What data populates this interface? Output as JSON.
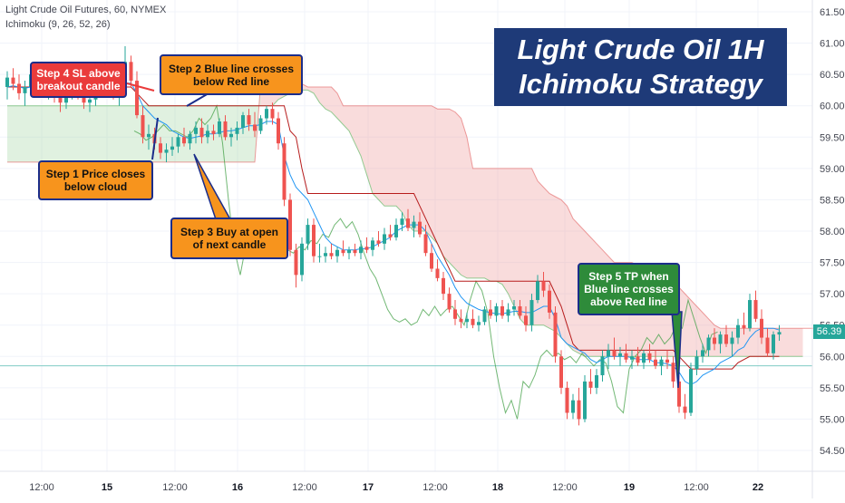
{
  "header": {
    "symbol": "Light Crude Oil Futures, 60, NYMEX",
    "indicator": "Ichimoku (9, 26, 52, 26)"
  },
  "title": {
    "line1": "Light Crude Oil 1H",
    "line2": "Ichimoku Strategy"
  },
  "callouts": {
    "step4": "Step 4 SL above breakout candle",
    "step2": "Step 2 Blue line crosses below Red line",
    "step1": "Step 1 Price closes below cloud",
    "step3": "Step 3 Buy at open of next candle",
    "step5": "Step 5 TP when Blue line crosses above Red line"
  },
  "last_price": "56.39",
  "colors": {
    "bull": "#26a69a",
    "bear": "#ef5350",
    "tenkan": "#2196f3",
    "kijun": "#b71c1c",
    "chikou": "#43a047",
    "cloud_bull": "#a5d6a7",
    "cloud_bear": "#ef9a9a"
  },
  "chart_data": {
    "type": "candlestick",
    "y_ticks": [
      "61.50",
      "61.00",
      "60.50",
      "60.00",
      "59.50",
      "59.00",
      "58.50",
      "58.00",
      "57.50",
      "57.00",
      "56.50",
      "56.00",
      "55.50",
      "55.00",
      "54.50"
    ],
    "ylim": [
      54.1,
      61.7
    ],
    "x_ticks": [
      "12:00",
      "15",
      "12:00",
      "16",
      "12:00",
      "17",
      "12:00",
      "18",
      "12:00",
      "19",
      "12:00",
      "22"
    ],
    "horizontal_line": 55.85,
    "ohlc": [
      [
        60.3,
        60.55,
        60.1,
        60.45
      ],
      [
        60.45,
        60.6,
        60.25,
        60.35
      ],
      [
        60.35,
        60.5,
        60.1,
        60.2
      ],
      [
        60.2,
        60.4,
        60.0,
        60.3
      ],
      [
        60.3,
        60.55,
        60.2,
        60.5
      ],
      [
        60.5,
        60.6,
        60.3,
        60.4
      ],
      [
        60.4,
        60.5,
        60.15,
        60.25
      ],
      [
        60.25,
        60.45,
        60.1,
        60.35
      ],
      [
        60.35,
        60.45,
        60.05,
        60.15
      ],
      [
        60.15,
        60.3,
        59.9,
        60.05
      ],
      [
        60.05,
        60.35,
        59.95,
        60.25
      ],
      [
        60.25,
        60.5,
        60.1,
        60.4
      ],
      [
        60.4,
        60.55,
        60.1,
        60.2
      ],
      [
        60.2,
        60.3,
        59.95,
        60.05
      ],
      [
        60.05,
        60.2,
        59.9,
        60.1
      ],
      [
        60.1,
        60.4,
        60.0,
        60.3
      ],
      [
        60.3,
        60.5,
        60.2,
        60.4
      ],
      [
        60.4,
        60.6,
        60.25,
        60.45
      ],
      [
        60.45,
        60.55,
        60.1,
        60.15
      ],
      [
        60.15,
        60.3,
        60.0,
        60.2
      ],
      [
        60.2,
        60.95,
        60.15,
        60.7
      ],
      [
        60.7,
        60.8,
        60.3,
        60.4
      ],
      [
        60.4,
        60.55,
        59.8,
        59.85
      ],
      [
        59.85,
        60.0,
        59.4,
        59.5
      ],
      [
        59.5,
        59.7,
        59.3,
        59.55
      ],
      [
        59.55,
        59.65,
        59.3,
        59.4
      ],
      [
        59.4,
        59.5,
        59.15,
        59.25
      ],
      [
        59.25,
        59.4,
        59.1,
        59.3
      ],
      [
        59.3,
        59.5,
        59.2,
        59.35
      ],
      [
        59.35,
        59.55,
        59.25,
        59.5
      ],
      [
        59.5,
        59.65,
        59.35,
        59.4
      ],
      [
        59.4,
        59.6,
        59.3,
        59.55
      ],
      [
        59.55,
        59.75,
        59.4,
        59.65
      ],
      [
        59.65,
        59.8,
        59.4,
        59.5
      ],
      [
        59.5,
        59.7,
        59.4,
        59.6
      ],
      [
        59.6,
        59.7,
        59.45,
        59.55
      ],
      [
        59.55,
        59.8,
        59.5,
        59.75
      ],
      [
        59.75,
        59.85,
        59.45,
        59.5
      ],
      [
        59.5,
        59.65,
        59.35,
        59.55
      ],
      [
        59.55,
        59.75,
        59.45,
        59.65
      ],
      [
        59.65,
        59.9,
        59.55,
        59.85
      ],
      [
        59.85,
        59.95,
        59.6,
        59.7
      ],
      [
        59.7,
        59.9,
        59.5,
        59.6
      ],
      [
        59.6,
        59.85,
        59.55,
        59.8
      ],
      [
        59.8,
        60.0,
        59.7,
        59.95
      ],
      [
        59.95,
        60.05,
        59.7,
        59.8
      ],
      [
        59.8,
        59.9,
        59.3,
        59.4
      ],
      [
        59.4,
        59.5,
        58.4,
        58.5
      ],
      [
        58.5,
        58.6,
        57.6,
        57.7
      ],
      [
        57.7,
        57.8,
        57.1,
        57.3
      ],
      [
        57.3,
        57.9,
        57.2,
        57.8
      ],
      [
        57.8,
        58.2,
        57.7,
        58.1
      ],
      [
        58.1,
        58.2,
        57.5,
        57.6
      ],
      [
        57.6,
        57.8,
        57.5,
        57.6
      ],
      [
        57.6,
        57.75,
        57.5,
        57.65
      ],
      [
        57.65,
        57.8,
        57.55,
        57.6
      ],
      [
        57.6,
        57.75,
        57.5,
        57.7
      ],
      [
        57.7,
        57.85,
        57.6,
        57.65
      ],
      [
        57.65,
        57.75,
        57.55,
        57.7
      ],
      [
        57.7,
        57.8,
        57.6,
        57.65
      ],
      [
        57.65,
        57.85,
        57.55,
        57.75
      ],
      [
        57.75,
        57.9,
        57.65,
        57.7
      ],
      [
        57.7,
        57.9,
        57.6,
        57.85
      ],
      [
        57.85,
        58.0,
        57.75,
        57.8
      ],
      [
        57.8,
        58.05,
        57.7,
        57.95
      ],
      [
        57.95,
        58.1,
        57.85,
        57.9
      ],
      [
        57.9,
        58.2,
        57.85,
        58.1
      ],
      [
        58.1,
        58.3,
        58.0,
        58.2
      ],
      [
        58.2,
        58.35,
        58.0,
        58.05
      ],
      [
        58.05,
        58.25,
        57.9,
        58.15
      ],
      [
        58.15,
        58.3,
        57.9,
        57.95
      ],
      [
        57.95,
        58.1,
        57.6,
        57.65
      ],
      [
        57.65,
        57.8,
        57.35,
        57.4
      ],
      [
        57.4,
        57.55,
        57.2,
        57.25
      ],
      [
        57.25,
        57.35,
        56.9,
        57.0
      ],
      [
        57.0,
        57.1,
        56.7,
        56.75
      ],
      [
        56.75,
        56.9,
        56.5,
        56.6
      ],
      [
        56.6,
        56.75,
        56.45,
        56.55
      ],
      [
        56.55,
        56.7,
        56.45,
        56.6
      ],
      [
        56.6,
        56.75,
        56.45,
        56.5
      ],
      [
        56.5,
        56.65,
        56.4,
        56.55
      ],
      [
        56.55,
        56.8,
        56.5,
        56.75
      ],
      [
        56.75,
        56.9,
        56.6,
        56.65
      ],
      [
        56.65,
        56.85,
        56.55,
        56.8
      ],
      [
        56.8,
        56.9,
        56.6,
        56.65
      ],
      [
        56.65,
        56.85,
        56.55,
        56.75
      ],
      [
        56.75,
        56.9,
        56.65,
        56.8
      ],
      [
        56.8,
        56.9,
        56.6,
        56.65
      ],
      [
        56.65,
        56.8,
        56.4,
        56.5
      ],
      [
        56.5,
        57.0,
        56.4,
        56.9
      ],
      [
        56.9,
        57.3,
        56.85,
        57.2
      ],
      [
        57.2,
        57.35,
        56.95,
        57.05
      ],
      [
        57.05,
        57.15,
        56.6,
        56.7
      ],
      [
        56.7,
        56.8,
        55.9,
        56.0
      ],
      [
        56.0,
        56.1,
        55.4,
        55.5
      ],
      [
        55.5,
        55.6,
        55.0,
        55.1
      ],
      [
        55.1,
        55.4,
        55.0,
        55.3
      ],
      [
        55.3,
        55.5,
        54.9,
        55.0
      ],
      [
        55.0,
        55.7,
        54.95,
        55.6
      ],
      [
        55.6,
        55.8,
        55.4,
        55.5
      ],
      [
        55.5,
        55.8,
        55.4,
        55.7
      ],
      [
        55.7,
        56.1,
        55.6,
        56.0
      ],
      [
        56.0,
        56.2,
        55.8,
        56.1
      ],
      [
        56.1,
        56.3,
        55.95,
        56.0
      ],
      [
        56.0,
        56.15,
        55.85,
        56.05
      ],
      [
        56.05,
        56.2,
        55.9,
        55.95
      ],
      [
        55.95,
        56.1,
        55.8,
        56.0
      ],
      [
        56.0,
        56.15,
        55.85,
        55.9
      ],
      [
        55.9,
        56.1,
        55.8,
        56.05
      ],
      [
        56.05,
        56.2,
        55.9,
        55.95
      ],
      [
        55.95,
        56.1,
        55.8,
        55.85
      ],
      [
        55.85,
        56.0,
        55.7,
        55.95
      ],
      [
        55.95,
        56.1,
        55.8,
        55.9
      ],
      [
        55.9,
        56.0,
        55.5,
        55.6
      ],
      [
        55.6,
        55.7,
        55.1,
        55.2
      ],
      [
        55.2,
        55.4,
        55.0,
        55.1
      ],
      [
        55.1,
        55.9,
        55.05,
        55.8
      ],
      [
        55.8,
        56.1,
        55.7,
        56.0
      ],
      [
        56.0,
        56.2,
        55.9,
        56.1
      ],
      [
        56.1,
        56.35,
        56.0,
        56.3
      ],
      [
        56.3,
        56.45,
        56.1,
        56.2
      ],
      [
        56.2,
        56.4,
        56.05,
        56.35
      ],
      [
        56.35,
        56.5,
        56.15,
        56.2
      ],
      [
        56.2,
        56.4,
        56.0,
        56.3
      ],
      [
        56.3,
        56.6,
        56.2,
        56.5
      ],
      [
        56.5,
        56.7,
        56.35,
        56.45
      ],
      [
        56.45,
        57.0,
        56.4,
        56.9
      ],
      [
        56.9,
        57.05,
        56.55,
        56.6
      ],
      [
        56.6,
        56.75,
        56.2,
        56.3
      ],
      [
        56.3,
        56.45,
        56.0,
        56.05
      ],
      [
        56.05,
        56.4,
        55.95,
        56.35
      ],
      [
        56.35,
        56.5,
        56.25,
        56.39
      ]
    ],
    "tenkan": [
      60.3,
      60.32,
      60.3,
      60.28,
      60.3,
      60.32,
      60.3,
      60.28,
      60.26,
      60.24,
      60.25,
      60.27,
      60.26,
      60.25,
      60.24,
      60.25,
      60.28,
      60.3,
      60.3,
      60.3,
      60.36,
      60.36,
      60.2,
      60.0,
      59.9,
      59.8,
      59.75,
      59.7,
      59.6,
      59.55,
      59.5,
      59.48,
      59.5,
      59.52,
      59.55,
      59.55,
      59.57,
      59.6,
      59.6,
      59.62,
      59.65,
      59.68,
      59.68,
      59.7,
      59.75,
      59.75,
      59.7,
      59.2,
      58.9,
      58.7,
      58.6,
      58.5,
      58.3,
      58.1,
      57.9,
      57.8,
      57.75,
      57.7,
      57.7,
      57.7,
      57.72,
      57.72,
      57.75,
      57.8,
      57.85,
      57.9,
      58.0,
      58.05,
      58.1,
      58.1,
      58.1,
      58.0,
      57.8,
      57.6,
      57.45,
      57.3,
      57.1,
      56.95,
      56.85,
      56.8,
      56.75,
      56.72,
      56.7,
      56.68,
      56.68,
      56.7,
      56.72,
      56.72,
      56.7,
      56.7,
      56.75,
      56.8,
      56.8,
      56.6,
      56.3,
      56.2,
      56.15,
      56.1,
      56.05,
      55.95,
      55.9,
      55.95,
      56.0,
      56.0,
      56.0,
      56.0,
      55.98,
      55.95,
      55.95,
      55.95,
      55.9,
      55.9,
      55.88,
      55.85,
      55.75,
      55.6,
      55.55,
      55.6,
      55.7,
      55.75,
      55.8,
      55.9,
      55.95,
      56.0,
      56.1,
      56.15,
      56.3,
      56.4,
      56.45,
      56.45,
      56.45,
      56.42
    ],
    "kijun": [
      60.3,
      60.3,
      60.3,
      60.3,
      60.3,
      60.3,
      60.3,
      60.3,
      60.3,
      60.3,
      60.3,
      60.3,
      60.3,
      60.3,
      60.3,
      60.3,
      60.3,
      60.3,
      60.3,
      60.3,
      60.3,
      60.3,
      60.2,
      60.1,
      60.0,
      60.0,
      60.0,
      60.0,
      60.0,
      60.0,
      60.0,
      60.0,
      60.0,
      60.0,
      60.0,
      60.0,
      60.0,
      60.0,
      60.0,
      60.0,
      60.0,
      60.0,
      60.0,
      60.0,
      60.0,
      60.0,
      60.0,
      60.0,
      59.6,
      59.5,
      59.0,
      58.6,
      58.6,
      58.6,
      58.6,
      58.6,
      58.6,
      58.6,
      58.6,
      58.6,
      58.6,
      58.6,
      58.6,
      58.6,
      58.6,
      58.6,
      58.6,
      58.6,
      58.6,
      58.6,
      58.4,
      58.2,
      58.0,
      57.8,
      57.6,
      57.4,
      57.2,
      57.2,
      57.2,
      57.2,
      57.2,
      57.2,
      57.2,
      57.2,
      57.2,
      57.2,
      57.2,
      57.2,
      57.2,
      57.2,
      57.2,
      57.2,
      57.2,
      57.0,
      56.8,
      56.5,
      56.2,
      56.1,
      56.1,
      56.1,
      56.1,
      56.1,
      56.1,
      56.1,
      56.1,
      56.1,
      56.1,
      56.1,
      56.1,
      56.1,
      56.1,
      56.1,
      56.1,
      56.1,
      56.0,
      55.9,
      55.8,
      55.8,
      55.8,
      55.8,
      55.8,
      55.8,
      55.8,
      55.8,
      55.9,
      55.95,
      56.0,
      56.0,
      56.0,
      56.0,
      56.0,
      56.0
    ],
    "chikou": [
      59.6,
      59.55,
      59.45,
      59.5,
      59.6,
      59.7,
      59.6,
      59.6,
      59.55,
      59.5,
      59.6,
      59.8,
      59.7,
      59.8,
      60.0,
      59.4,
      58.5,
      57.7,
      57.3,
      57.8,
      58.1,
      57.6,
      57.6,
      57.6,
      57.7,
      57.65,
      57.7,
      57.65,
      57.75,
      57.7,
      57.85,
      57.8,
      57.95,
      57.9,
      58.1,
      58.2,
      58.05,
      58.15,
      57.95,
      57.65,
      57.4,
      57.25,
      57.0,
      56.75,
      56.6,
      56.55,
      56.6,
      56.5,
      56.55,
      56.75,
      56.65,
      56.8,
      56.65,
      56.75,
      56.8,
      56.65,
      56.5,
      56.9,
      57.2,
      57.05,
      56.7,
      56.0,
      55.5,
      55.1,
      55.3,
      55.0,
      55.6,
      55.5,
      55.7,
      56.0,
      56.1,
      56.0,
      56.05,
      55.95,
      56.0,
      55.9,
      56.05,
      55.95,
      55.85,
      55.95,
      55.9,
      55.6,
      55.2,
      55.1,
      55.8,
      56.0,
      56.1,
      56.3,
      56.2,
      56.35,
      56.2,
      56.3,
      56.5,
      56.45,
      56.9,
      56.6,
      56.3,
      56.05,
      56.35,
      56.39
    ],
    "span_a": [
      60.0,
      60.0,
      60.0,
      60.0,
      60.0,
      60.0,
      60.0,
      60.0,
      60.0,
      60.0,
      60.0,
      60.0,
      60.0,
      60.0,
      60.0,
      60.0,
      60.0,
      60.0,
      60.0,
      60.0,
      60.0,
      60.0,
      60.0,
      60.0,
      60.0,
      60.0,
      60.0,
      60.0,
      60.0,
      60.0,
      60.0,
      60.0,
      60.0,
      60.0,
      60.0,
      60.0,
      60.0,
      60.0,
      60.0,
      60.0,
      60.0,
      60.0,
      60.0,
      60.0,
      60.0,
      60.0,
      60.1,
      60.15,
      60.2,
      60.2,
      60.25,
      60.25,
      60.2,
      60.05,
      59.95,
      59.9,
      59.8,
      59.7,
      59.6,
      59.4,
      59.2,
      58.9,
      58.6,
      58.5,
      58.4,
      58.4,
      58.4,
      58.3,
      58.1,
      58.0,
      58.0,
      58.0,
      57.9,
      57.8,
      57.6,
      57.5,
      57.4,
      57.3,
      57.25,
      57.25,
      57.25,
      57.25,
      57.2,
      57.2,
      57.15,
      57.0,
      56.8,
      56.6,
      56.5,
      56.5,
      56.5,
      56.5,
      56.45,
      56.4,
      56.3,
      56.2,
      56.1,
      56.05,
      56.0,
      56.0,
      56.0,
      56.0,
      56.0,
      56.0,
      56.0,
      56.0,
      56.0,
      56.0,
      56.0,
      56.0,
      56.0,
      56.0,
      56.0,
      56.0,
      56.0,
      56.0,
      56.0,
      56.0,
      56.0,
      56.0,
      56.0,
      56.0,
      56.0,
      56.0,
      56.0,
      56.0,
      56.0,
      56.0,
      56.0,
      56.0,
      56.0,
      56.0,
      56.0,
      56.0,
      56.0,
      56.0
    ],
    "span_b": [
      59.1,
      59.1,
      59.1,
      59.1,
      59.1,
      59.1,
      59.1,
      59.1,
      59.1,
      59.1,
      59.1,
      59.1,
      59.1,
      59.1,
      59.1,
      59.1,
      59.1,
      59.1,
      59.1,
      59.1,
      59.1,
      59.1,
      59.1,
      59.1,
      59.1,
      59.1,
      59.1,
      59.1,
      59.1,
      59.1,
      59.1,
      59.1,
      59.1,
      59.1,
      59.1,
      59.1,
      59.1,
      59.1,
      59.1,
      59.1,
      59.1,
      59.1,
      59.1,
      60.35,
      60.35,
      60.35,
      60.35,
      60.35,
      60.35,
      60.35,
      60.35,
      60.3,
      60.3,
      60.3,
      60.3,
      60.3,
      60.2,
      60.0,
      60.0,
      60.0,
      60.0,
      60.0,
      60.0,
      60.0,
      60.0,
      60.0,
      60.0,
      60.0,
      60.0,
      60.0,
      60.0,
      60.0,
      60.0,
      59.95,
      59.95,
      59.95,
      59.9,
      59.8,
      59.5,
      59.0,
      59.0,
      59.0,
      59.0,
      59.0,
      59.0,
      59.0,
      59.0,
      59.0,
      59.0,
      59.0,
      58.8,
      58.7,
      58.6,
      58.55,
      58.5,
      58.4,
      58.2,
      58.1,
      58.0,
      57.9,
      57.8,
      57.7,
      57.6,
      57.5,
      57.5,
      57.5,
      57.5,
      57.45,
      57.45,
      57.45,
      57.45,
      57.4,
      57.3,
      57.2,
      57.1,
      57.0,
      56.9,
      56.8,
      56.7,
      56.6,
      56.5,
      56.45,
      56.45,
      56.45,
      56.45,
      56.45,
      56.45,
      56.45,
      56.45,
      56.45,
      56.45,
      56.45,
      56.45,
      56.45,
      56.45,
      56.45,
      56.45,
      56.45,
      56.45,
      56.45,
      56.45,
      56.45
    ]
  }
}
